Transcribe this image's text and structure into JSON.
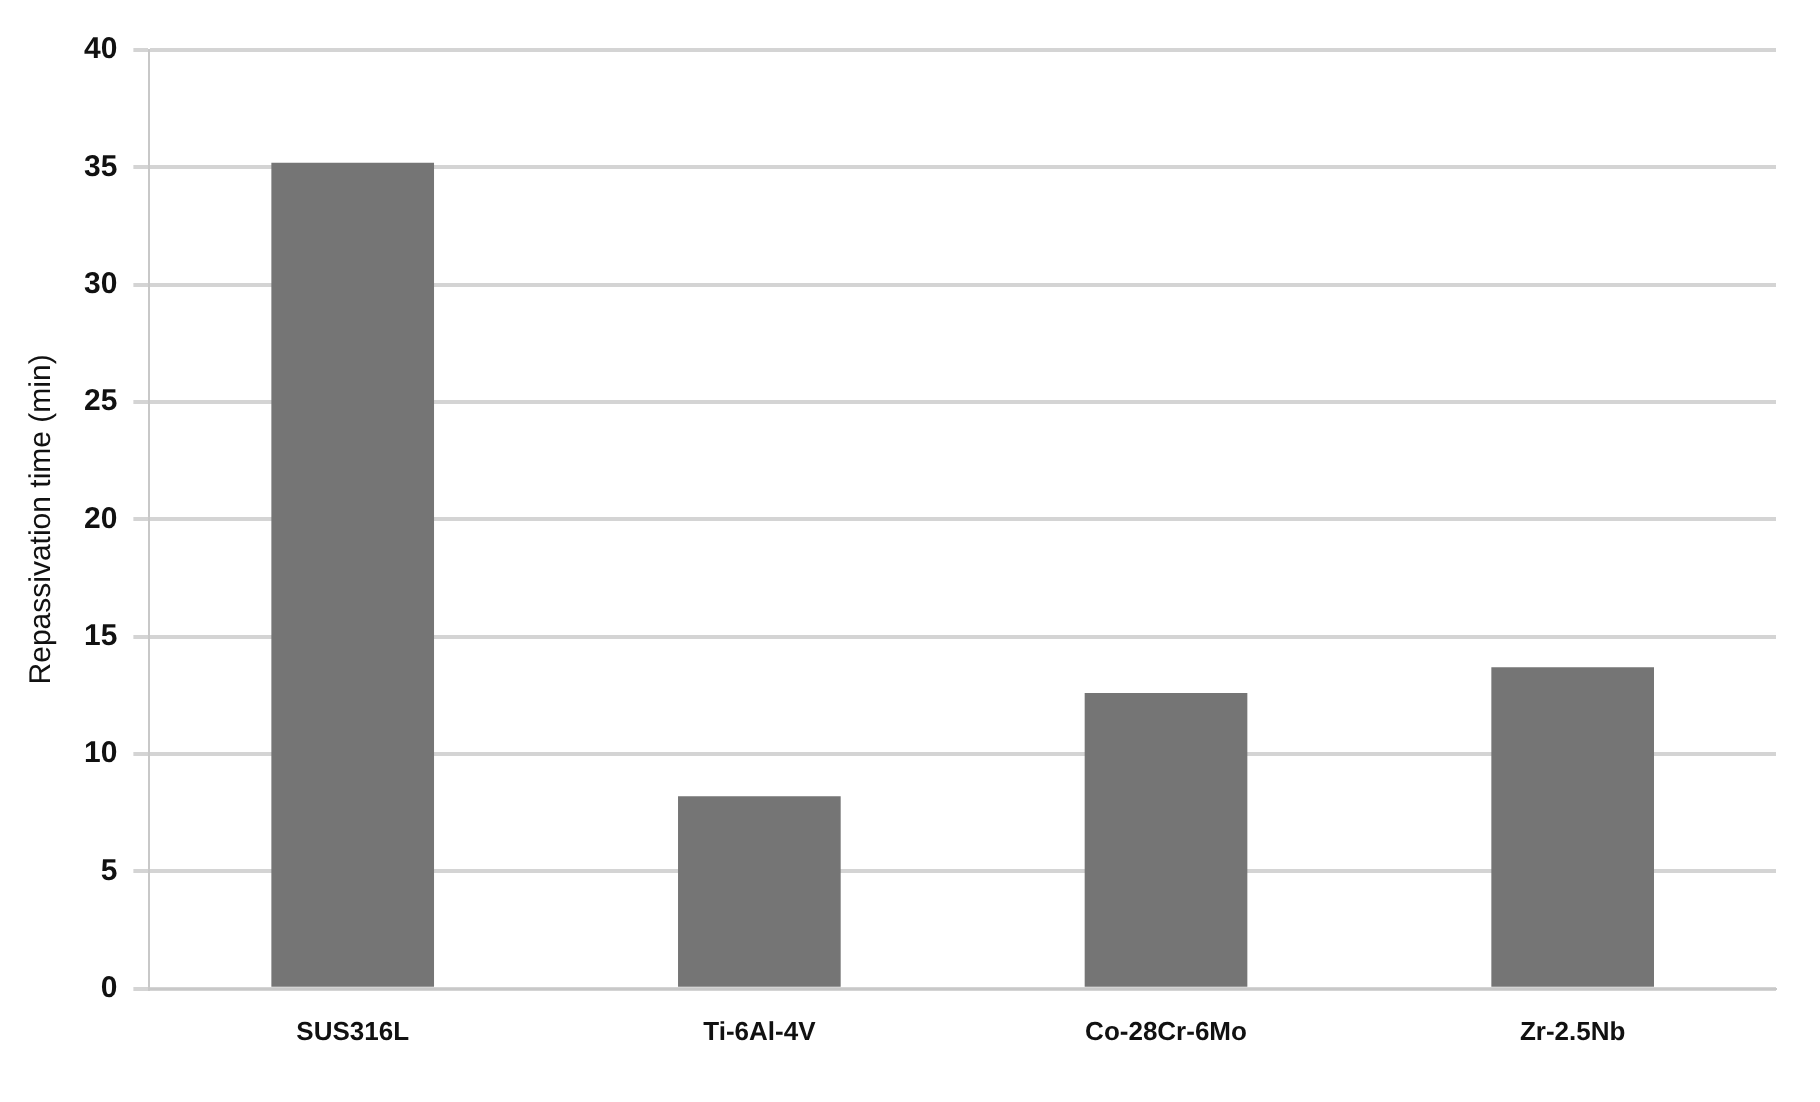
{
  "chart_data": {
    "type": "bar",
    "ylabel": "Repassivation time (min)",
    "categories": [
      "SUS316L",
      "Ti-6Al-4V",
      "Co-28Cr-6Mo",
      "Zr-2.5Nb"
    ],
    "values": [
      35.2,
      8.2,
      12.6,
      13.7
    ],
    "color": "#757575",
    "ylim": [
      0,
      40
    ],
    "yticks": [
      0,
      5,
      10,
      15,
      20,
      25,
      30,
      35,
      40
    ],
    "grid": "y"
  }
}
